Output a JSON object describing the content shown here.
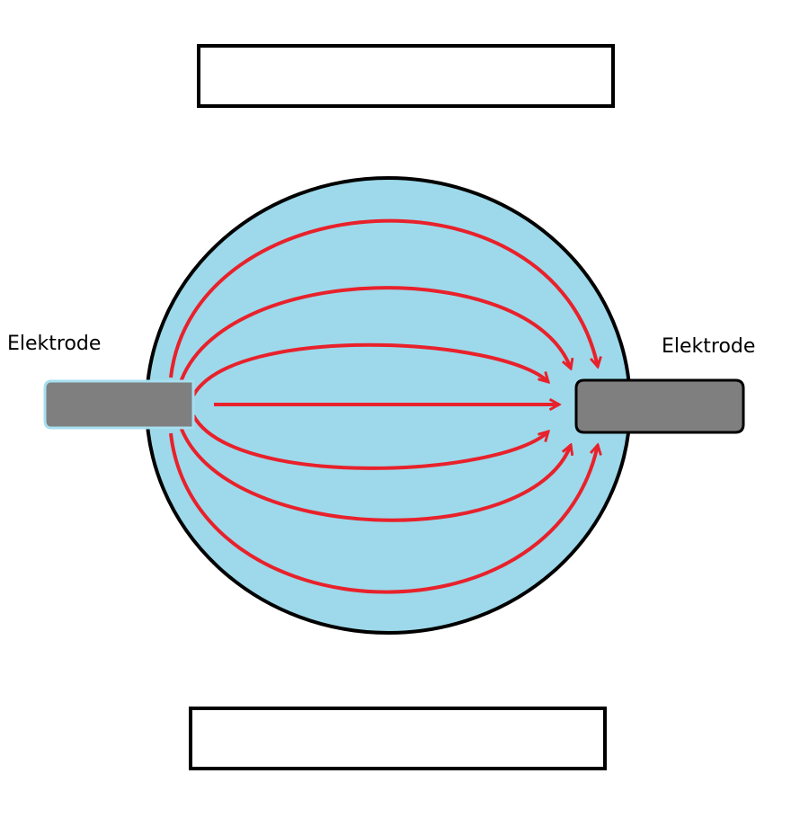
{
  "labels": {
    "left_electrode": "Elektrode",
    "right_electrode": "Elektrode",
    "top_box": "",
    "bottom_box": ""
  },
  "colors": {
    "medium_fill": "#9dd9ea",
    "outline": "#000000",
    "field_lines": "#e8212b",
    "electrode": "#7f7f7f",
    "electrode_edge": "#a6dff0"
  },
  "field_lines_count": 7
}
